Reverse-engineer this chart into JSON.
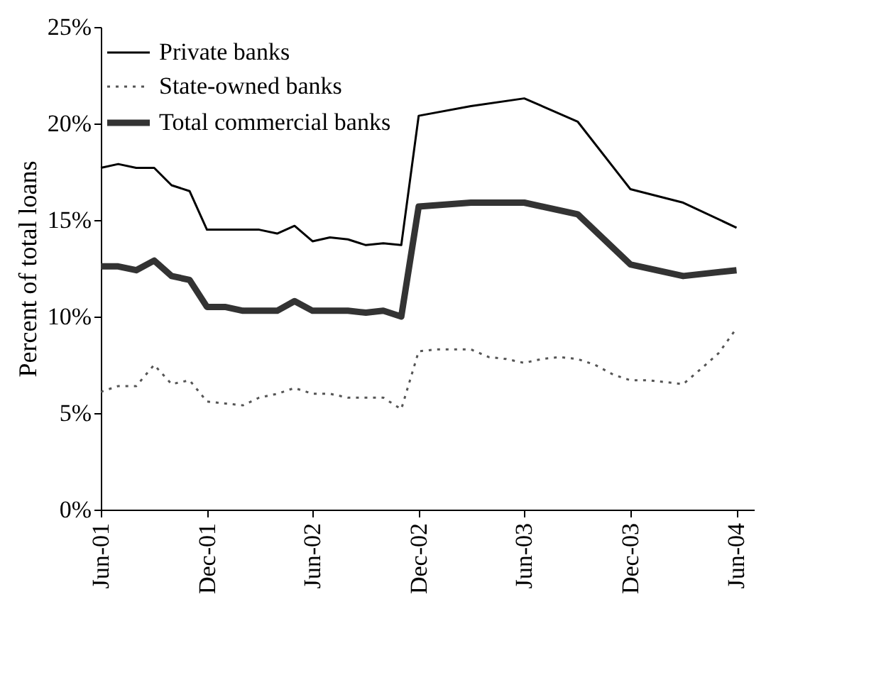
{
  "chart_data": {
    "type": "line",
    "ylabel": "Percent of total loans",
    "xlim": [
      "2001-06",
      "2004-07"
    ],
    "xticks": [
      {
        "value": "2001-06",
        "label": "Jun-01"
      },
      {
        "value": "2001-12",
        "label": "Dec-01"
      },
      {
        "value": "2002-06",
        "label": "Jun-02"
      },
      {
        "value": "2002-12",
        "label": "Dec-02"
      },
      {
        "value": "2003-06",
        "label": "Jun-03"
      },
      {
        "value": "2003-12",
        "label": "Dec-03"
      },
      {
        "value": "2004-06",
        "label": "Jun-04"
      }
    ],
    "ylim": [
      0,
      25
    ],
    "yticks": [
      {
        "value": 0,
        "label": "0%"
      },
      {
        "value": 5,
        "label": "5%"
      },
      {
        "value": 10,
        "label": "10%"
      },
      {
        "value": 15,
        "label": "15%"
      },
      {
        "value": 20,
        "label": "20%"
      },
      {
        "value": 25,
        "label": "25%"
      }
    ],
    "grid": false,
    "legend": "top left",
    "marker": "none",
    "series": [
      {
        "name": "Private banks",
        "color": "#000000",
        "line_style": "solid",
        "x": [
          "2001-06",
          "2001-07",
          "2001-08",
          "2001-09",
          "2001-10",
          "2001-11",
          "2001-12",
          "2002-01",
          "2002-02",
          "2002-03",
          "2002-04",
          "2002-05",
          "2002-06",
          "2002-07",
          "2002-08",
          "2002-09",
          "2002-10",
          "2002-11",
          "2002-12",
          "2003-03",
          "2003-06",
          "2003-09",
          "2003-12",
          "2004-03",
          "2004-06"
        ],
        "values": [
          17.7,
          17.9,
          17.7,
          17.7,
          16.8,
          16.5,
          14.5,
          14.5,
          14.5,
          14.5,
          14.3,
          14.7,
          13.9,
          14.1,
          14.0,
          13.7,
          13.8,
          13.7,
          20.4,
          20.9,
          21.3,
          20.1,
          16.6,
          15.9,
          14.6
        ]
      },
      {
        "name": "State-owned banks",
        "color": "#555555",
        "line_style": "dotted",
        "x": [
          "2001-06",
          "2001-07",
          "2001-08",
          "2001-09",
          "2001-10",
          "2001-11",
          "2001-12",
          "2002-01",
          "2002-02",
          "2002-03",
          "2002-04",
          "2002-05",
          "2002-06",
          "2002-07",
          "2002-08",
          "2002-09",
          "2002-10",
          "2002-11",
          "2002-12",
          "2003-01",
          "2003-02",
          "2003-03",
          "2003-04",
          "2003-05",
          "2003-06",
          "2003-07",
          "2003-08",
          "2003-09",
          "2003-10",
          "2003-11",
          "2003-12",
          "2004-01",
          "2004-02",
          "2004-03",
          "2004-04",
          "2004-05",
          "2004-06"
        ],
        "values": [
          6.1,
          6.4,
          6.4,
          7.5,
          6.5,
          6.7,
          5.6,
          5.5,
          5.4,
          5.8,
          6.0,
          6.3,
          6.0,
          6.0,
          5.8,
          5.8,
          5.8,
          5.2,
          8.2,
          8.3,
          8.3,
          8.3,
          7.9,
          7.8,
          7.6,
          7.8,
          7.9,
          7.8,
          7.5,
          7.0,
          6.7,
          6.7,
          6.6,
          6.5,
          7.3,
          8.1,
          9.4
        ]
      },
      {
        "name": "Total commercial banks",
        "color": "#333333",
        "line_style": "solid",
        "x": [
          "2001-06",
          "2001-07",
          "2001-08",
          "2001-09",
          "2001-10",
          "2001-11",
          "2001-12",
          "2002-01",
          "2002-02",
          "2002-03",
          "2002-04",
          "2002-05",
          "2002-06",
          "2002-07",
          "2002-08",
          "2002-09",
          "2002-10",
          "2002-11",
          "2002-12",
          "2003-03",
          "2003-06",
          "2003-09",
          "2003-12",
          "2004-03",
          "2004-06"
        ],
        "values": [
          12.6,
          12.6,
          12.4,
          12.9,
          12.1,
          11.9,
          10.5,
          10.5,
          10.3,
          10.3,
          10.3,
          10.8,
          10.3,
          10.3,
          10.3,
          10.2,
          10.3,
          10.0,
          15.7,
          15.9,
          15.9,
          15.3,
          12.7,
          12.1,
          12.4
        ]
      }
    ]
  }
}
